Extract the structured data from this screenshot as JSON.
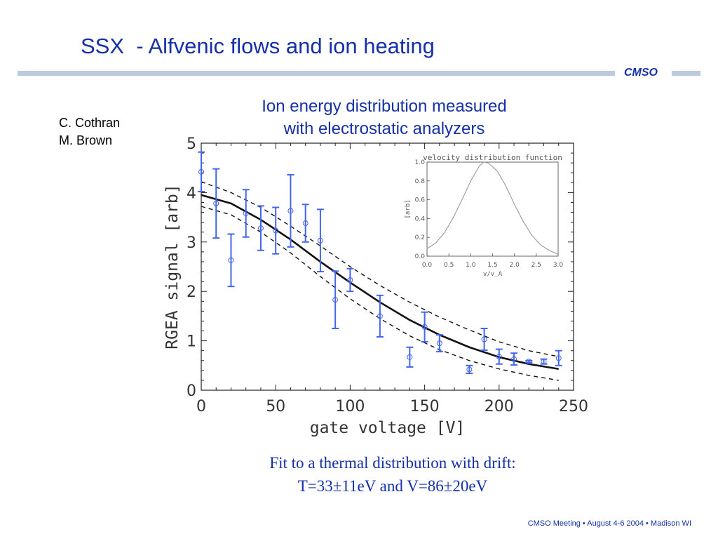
{
  "slide": {
    "title": "SSX  - Alfvenic flows and ion heating",
    "brand": "CMSO",
    "heading_line1": "Ion energy distribution measured",
    "heading_line2": "with electrostatic analyzers",
    "authors": [
      "C. Cothran",
      "M. Brown"
    ],
    "caption_line1": "Fit to a thermal distribution with drift:",
    "caption_line2": "T=33±11eV and V=86±20eV",
    "footer": "CMSO Meeting • August 4-6 2004 • Madison WI"
  },
  "colors": {
    "title_blue": "#1530a8",
    "rule": "#bccae0",
    "error_bars": "#4466ee",
    "fit_line": "#111111",
    "inset_curve": "#999999"
  },
  "chart_data": [
    {
      "type": "scatter",
      "xlabel": "gate voltage [V]",
      "ylabel": "RGEA signal [arb]",
      "xlim": [
        0,
        250
      ],
      "ylim": [
        0,
        5
      ],
      "xticks": [
        0,
        50,
        100,
        150,
        200,
        250
      ],
      "yticks": [
        0,
        1,
        2,
        3,
        4,
        5
      ],
      "series": [
        {
          "kind": "points_with_error",
          "x": [
            0,
            10,
            20,
            30,
            40,
            50,
            60,
            70,
            80,
            90,
            100,
            120,
            140,
            150,
            160,
            180,
            190,
            200,
            210,
            220,
            230,
            240
          ],
          "y": [
            4.42,
            3.78,
            2.63,
            3.58,
            3.28,
            3.23,
            3.63,
            3.38,
            3.03,
            1.83,
            2.23,
            1.5,
            0.67,
            1.28,
            0.95,
            0.42,
            1.03,
            0.68,
            0.63,
            0.58,
            0.58,
            0.65
          ],
          "err": [
            0.4,
            0.7,
            0.53,
            0.48,
            0.45,
            0.47,
            0.73,
            0.38,
            0.63,
            0.58,
            0.23,
            0.42,
            0.2,
            0.3,
            0.17,
            0.08,
            0.22,
            0.15,
            0.12,
            0.02,
            0.05,
            0.15
          ]
        },
        {
          "kind": "fit",
          "style": "solid",
          "x": [
            0,
            20,
            40,
            60,
            80,
            100,
            120,
            140,
            160,
            180,
            200,
            220,
            240
          ],
          "y": [
            3.95,
            3.78,
            3.45,
            3.05,
            2.6,
            2.18,
            1.78,
            1.42,
            1.12,
            0.87,
            0.67,
            0.53,
            0.43
          ]
        },
        {
          "kind": "fit_upper",
          "style": "dashed",
          "x": [
            0,
            20,
            40,
            60,
            80,
            100,
            120,
            140,
            160,
            180,
            200,
            220,
            240
          ],
          "y": [
            4.22,
            4.0,
            3.7,
            3.32,
            2.92,
            2.5,
            2.12,
            1.78,
            1.48,
            1.22,
            0.98,
            0.8,
            0.68
          ]
        },
        {
          "kind": "fit_lower",
          "style": "dashed",
          "x": [
            0,
            20,
            40,
            60,
            80,
            100,
            120,
            140,
            160,
            180,
            200,
            220,
            240
          ],
          "y": [
            3.72,
            3.55,
            3.2,
            2.78,
            2.3,
            1.85,
            1.45,
            1.1,
            0.82,
            0.6,
            0.43,
            0.3,
            0.2
          ]
        }
      ]
    },
    {
      "type": "line",
      "title": "velocity distribution function",
      "xlabel": "v/v_A",
      "ylabel": "[arb]",
      "xlim": [
        0,
        3
      ],
      "ylim": [
        0,
        1
      ],
      "xtick_labels": [
        "0.0",
        "0.5",
        "1.0",
        "1.5",
        "2.0",
        "2.5",
        "3.0"
      ],
      "ytick_labels": [
        "0.0",
        "0.2",
        "0.4",
        "0.6",
        "0.8",
        "1.0"
      ],
      "series": [
        {
          "x": [
            0,
            0.2,
            0.4,
            0.6,
            0.8,
            1.0,
            1.2,
            1.3,
            1.4,
            1.6,
            1.8,
            2.0,
            2.2,
            2.4,
            2.6,
            2.8,
            3.0
          ],
          "y": [
            0.08,
            0.14,
            0.25,
            0.41,
            0.6,
            0.8,
            0.96,
            1.0,
            0.99,
            0.91,
            0.75,
            0.55,
            0.37,
            0.22,
            0.12,
            0.06,
            0.02
          ]
        }
      ]
    }
  ]
}
